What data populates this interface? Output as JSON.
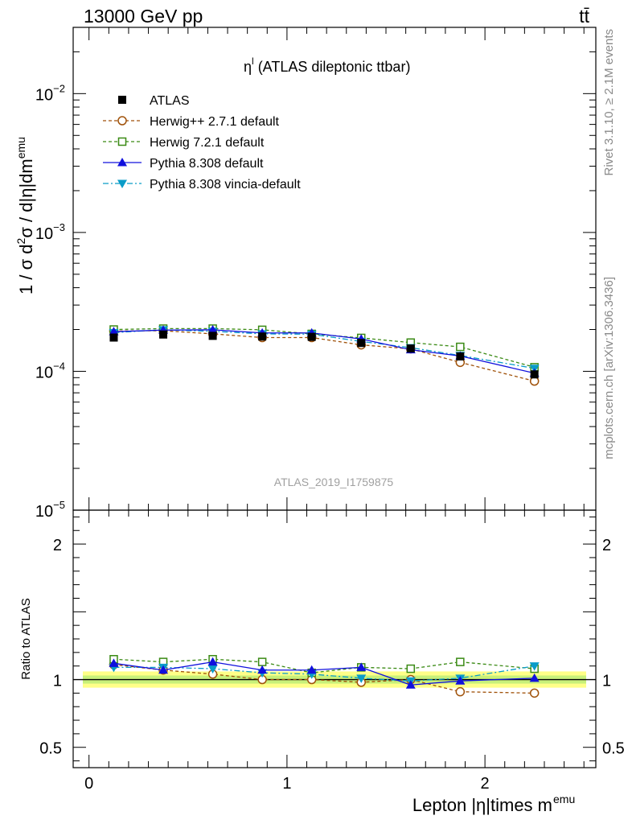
{
  "header": {
    "energy_label": "13000 GeV pp",
    "process_label": "tt̄",
    "plot_title_sym": "η",
    "plot_title_sup": "l",
    "plot_title_text": " (ATLAS dileptonic ttbar)",
    "analysis_id": "ATLAS_2019_I1759875"
  },
  "side_labels": {
    "rivet": "Rivet 3.1.10, ≥ 2.1M events",
    "mcplots": "mcplots.cern.ch [arXiv:1306.3436]"
  },
  "axis_labels": {
    "main_y_main": "1 / σ  d",
    "main_y_sup2": "2",
    "main_y_mid": "σ / d|η|dm",
    "main_y_sup": "emu",
    "ratio_y": "Ratio to ATLAS",
    "x_main": "Lepton |η|times m",
    "x_sup": "emu"
  },
  "chart_data": [
    {
      "type": "line",
      "panel": "main",
      "yscale": "log",
      "xlim": [
        -0.08,
        2.56
      ],
      "ylim": [
        1e-05,
        0.03
      ],
      "y_ticks": [
        {
          "value": 1e-05,
          "base": "10",
          "exp": "−5"
        },
        {
          "value": 0.0001,
          "base": "10",
          "exp": "−4"
        },
        {
          "value": 0.001,
          "base": "10",
          "exp": "−3"
        },
        {
          "value": 0.01,
          "base": "10",
          "exp": "−2"
        }
      ],
      "x": [
        0.125,
        0.375,
        0.625,
        0.875,
        1.125,
        1.375,
        1.625,
        1.875,
        2.25
      ],
      "legend_position": "top-left",
      "series": [
        {
          "name": "ATLAS",
          "color": "#000000",
          "marker": "square-filled",
          "line": "none",
          "values": [
            0.000175,
            0.000184,
            0.00018,
            0.000178,
            0.000177,
            0.00016,
            0.000146,
            0.000128,
            9.5e-05
          ]
        },
        {
          "name": "Herwig++ 2.7.1 default",
          "color": "#a0520a",
          "marker": "circle-open",
          "line": "dashed",
          "values": [
            0.000195,
            0.000196,
            0.000186,
            0.000175,
            0.000175,
            0.000155,
            0.000145,
            0.000116,
            8.5e-05
          ]
        },
        {
          "name": "Herwig 7.2.1 default",
          "color": "#3a8a14",
          "marker": "square-open",
          "line": "dashed",
          "values": [
            0.0002,
            0.000203,
            0.000203,
            0.000199,
            0.000186,
            0.000174,
            0.000161,
            0.00015,
            0.000107
          ]
        },
        {
          "name": "Pythia 8.308 default",
          "color": "#1010dd",
          "marker": "triangle-up",
          "line": "solid",
          "values": [
            0.000193,
            0.000198,
            0.000199,
            0.000189,
            0.000189,
            0.000171,
            0.000143,
            0.000129,
            9.7e-05
          ]
        },
        {
          "name": "Pythia 8.308 vincia-default",
          "color": "#0a9cc8",
          "marker": "triangle-down",
          "line": "dashdot",
          "values": [
            0.00019,
            0.000199,
            0.000194,
            0.000186,
            0.000185,
            0.000164,
            0.000148,
            0.00013,
            0.000105
          ]
        }
      ]
    },
    {
      "type": "line",
      "panel": "ratio",
      "yscale": "linear",
      "xlim": [
        -0.08,
        2.56
      ],
      "ylim": [
        0.35,
        2.25
      ],
      "y_ticks": [
        {
          "value": 0.5,
          "label": "0.5"
        },
        {
          "value": 1,
          "label": "1"
        },
        {
          "value": 2,
          "label": "2"
        }
      ],
      "x_ticks": [
        {
          "value": 0,
          "label": "0"
        },
        {
          "value": 1,
          "label": "1"
        },
        {
          "value": 2,
          "label": "2"
        }
      ],
      "x": [
        0.125,
        0.375,
        0.625,
        0.875,
        1.125,
        1.375,
        1.625,
        1.875,
        2.25
      ],
      "reference_band": {
        "inner": [
          0.97,
          1.03
        ],
        "outer": [
          0.94,
          1.06
        ],
        "inner_color": "#c8f07a",
        "outer_color": "#ffff88"
      },
      "series": [
        {
          "name": "Herwig++ 2.7.1 default",
          "color": "#a0520a",
          "marker": "circle-open",
          "line": "dashed",
          "values": [
            1.11,
            1.07,
            1.04,
            1.0,
            1.0,
            0.98,
            1.0,
            0.91,
            0.9
          ]
        },
        {
          "name": "Herwig 7.2.1 default",
          "color": "#3a8a14",
          "marker": "square-open",
          "line": "dashed",
          "values": [
            1.15,
            1.13,
            1.15,
            1.13,
            1.05,
            1.09,
            1.08,
            1.13,
            1.08
          ]
        },
        {
          "name": "Pythia 8.308 default",
          "color": "#1010dd",
          "marker": "triangle-up",
          "line": "solid",
          "values": [
            1.12,
            1.07,
            1.13,
            1.07,
            1.07,
            1.09,
            0.96,
            0.99,
            1.01
          ]
        },
        {
          "name": "Pythia 8.308 vincia-default",
          "color": "#0a9cc8",
          "marker": "triangle-down",
          "line": "dashdot",
          "values": [
            1.09,
            1.09,
            1.08,
            1.05,
            1.04,
            1.01,
            0.99,
            1.01,
            1.1
          ]
        }
      ]
    }
  ]
}
